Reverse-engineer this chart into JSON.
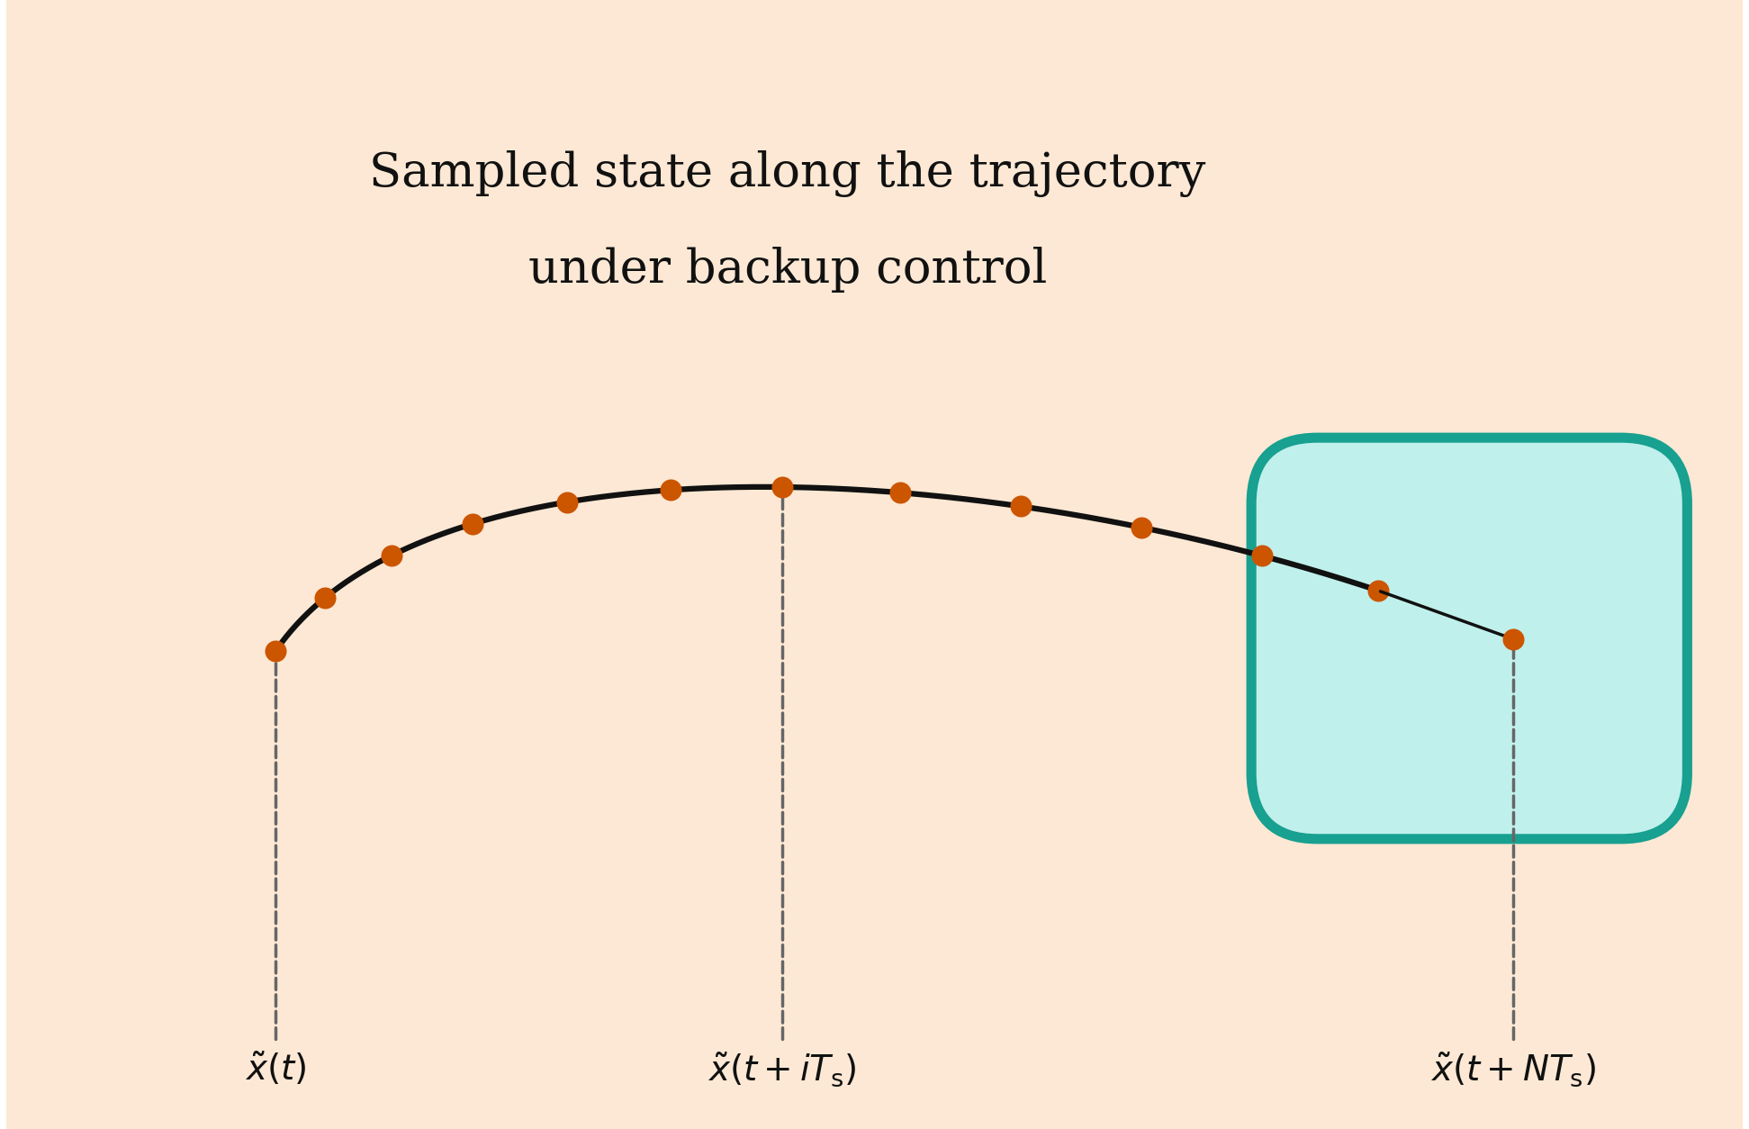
{
  "fig_width": 19.43,
  "fig_height": 12.54,
  "dpi": 100,
  "bg_color": "#ffffff",
  "lavender_fill": "#d8dcf0",
  "outer_border_color": "#00c8e0",
  "outer_border_linewidth": 10,
  "outer_border_dash_on": 18,
  "outer_border_dash_off": 10,
  "inner_blob_fill": "#fce8d4",
  "inner_blob_edge": "#c04800",
  "inner_blob_linewidth": 10,
  "teal_blob_fill": "#c0f0ec",
  "teal_blob_edge": "#18a090",
  "teal_blob_linewidth": 8,
  "dot_color": "#cc5500",
  "dot_size": 300,
  "curve_color": "#111111",
  "curve_linewidth": 4.5,
  "dashed_color": "#666666",
  "dashed_linewidth": 2.5,
  "arrow_color": "#111111",
  "text_color": "#111111",
  "label_fontsize": 28,
  "annotation_fontsize": 38,
  "title_text_line1": "Sampled state along the trajectory",
  "title_text_line2": "under backup control",
  "label_xt": "$\\tilde{x}(t)$",
  "label_xit": "$\\tilde{x}(t + iT_{\\mathrm{s}})$",
  "label_xNt": "$\\tilde{x}(t + NT_{\\mathrm{s}})$",
  "xlim": [
    0,
    10
  ],
  "ylim": [
    0,
    6.5
  ]
}
